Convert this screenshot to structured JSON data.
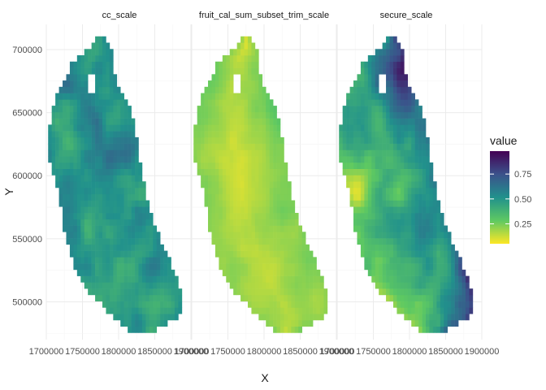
{
  "chart_data": {
    "type": "heatmap",
    "title": "",
    "xlabel": "X",
    "ylabel": "Y",
    "xlim": [
      1700000,
      1900000
    ],
    "ylim": [
      470000,
      720000
    ],
    "x_ticks": [
      1700000,
      1750000,
      1800000,
      1850000,
      1900000
    ],
    "x_tick_labels": [
      "1700000",
      "1750000",
      "1800000",
      "1850000",
      "1900000"
    ],
    "y_ticks": [
      500000,
      550000,
      600000,
      650000,
      700000
    ],
    "y_tick_labels": [
      "500000",
      "550000",
      "600000",
      "650000",
      "700000"
    ],
    "grid": true,
    "legend": {
      "title": "value",
      "placement": "right",
      "range": [
        0.05,
        0.98
      ],
      "ticks": [
        0.25,
        0.5,
        0.75
      ],
      "tick_labels": [
        "0.25",
        "0.50",
        "0.75"
      ],
      "colormap": "viridis (reversed: high = dark purple, low = yellow)"
    },
    "cell_size": [
      5000,
      5000
    ],
    "facets": [
      {
        "label": "cc_scale",
        "value_range": [
          0.3,
          0.72
        ],
        "mean": 0.5
      },
      {
        "label": "fruit_cal_sum_subset_trim_scale",
        "value_range": [
          0.05,
          0.35
        ],
        "mean": 0.18
      },
      {
        "label": "secure_scale",
        "value_range": [
          0.05,
          0.98
        ],
        "mean": 0.55
      }
    ]
  },
  "colors": {
    "strip_text": "#1a1a1a",
    "axis_text": "#4d4d4d",
    "grid_major": "#ebebeb",
    "grid_minor": "#f5f5f5",
    "viridis_stops": [
      "#fde725",
      "#5ec962",
      "#21918c",
      "#3b528b",
      "#440154"
    ]
  }
}
